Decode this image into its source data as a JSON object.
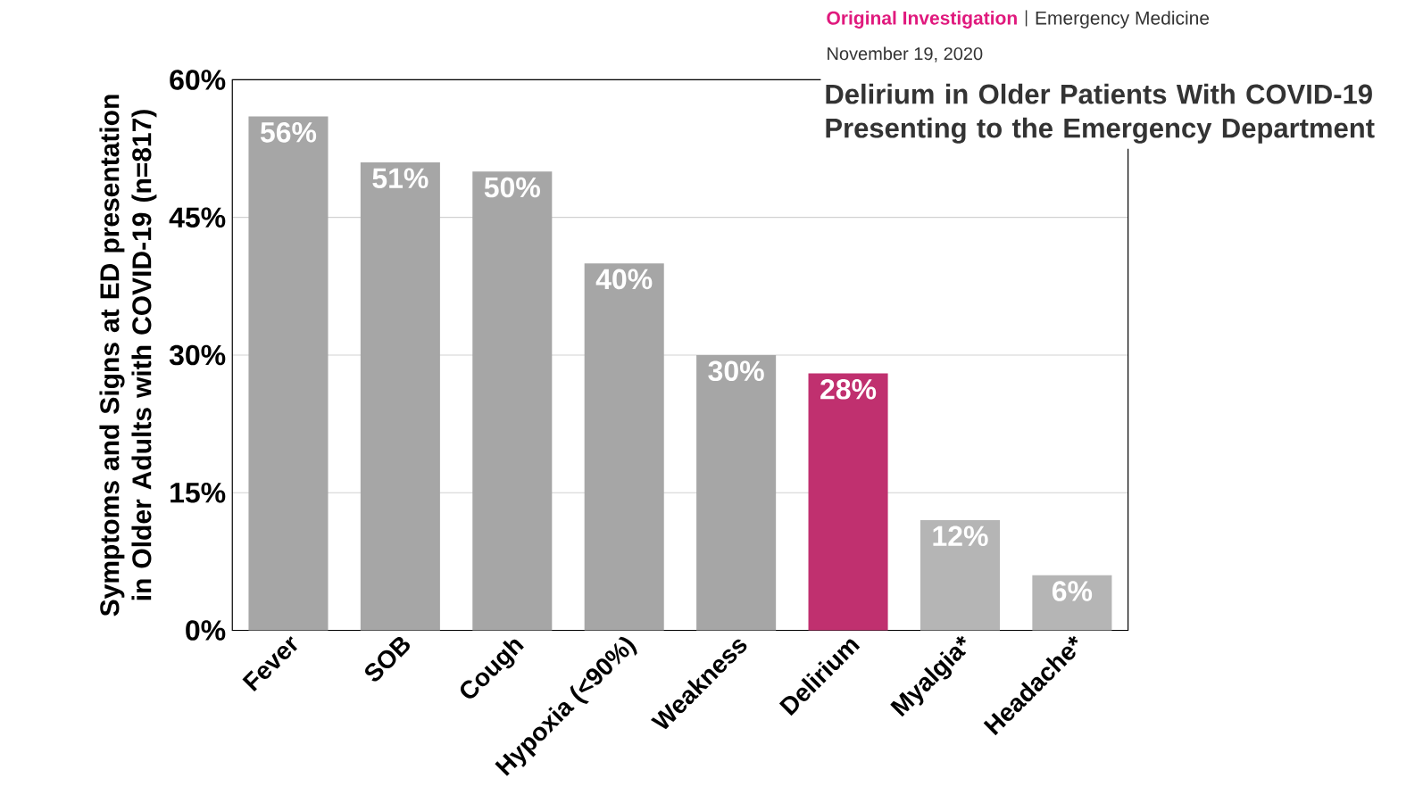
{
  "chart_data": {
    "type": "bar",
    "title": "Delirium in Older Patients With COVID-19 Presenting to the Emergency Department",
    "annotations": [
      "Original Investigation",
      "Emergency Medicine",
      "November 19, 2020"
    ],
    "ylabel": "Symptoms and Signs at ED presentation in Older Adults with COVID-19 (n=817)",
    "categories": [
      "Fever",
      "SOB",
      "Cough",
      "Hypoxia (<90%)",
      "Weakness",
      "Delirium",
      "Myalgia*",
      "Headache*"
    ],
    "values": [
      56,
      51,
      50,
      40,
      30,
      28,
      12,
      6
    ],
    "value_labels": [
      "56%",
      "51%",
      "50%",
      "40%",
      "30%",
      "28%",
      "12%",
      "6%"
    ],
    "colors": [
      "#a6a6a6",
      "#a6a6a6",
      "#a6a6a6",
      "#a6a6a6",
      "#a6a6a6",
      "#c0306f",
      "#b5b5b5",
      "#b5b5b5"
    ],
    "ylim": [
      0,
      60
    ],
    "yticks": [
      {
        "value": 0,
        "label": "0%"
      },
      {
        "value": 15,
        "label": "15%"
      },
      {
        "value": 30,
        "label": "30%"
      },
      {
        "value": 45,
        "label": "45%"
      },
      {
        "value": 60,
        "label": "60%"
      }
    ],
    "grid": "y"
  }
}
